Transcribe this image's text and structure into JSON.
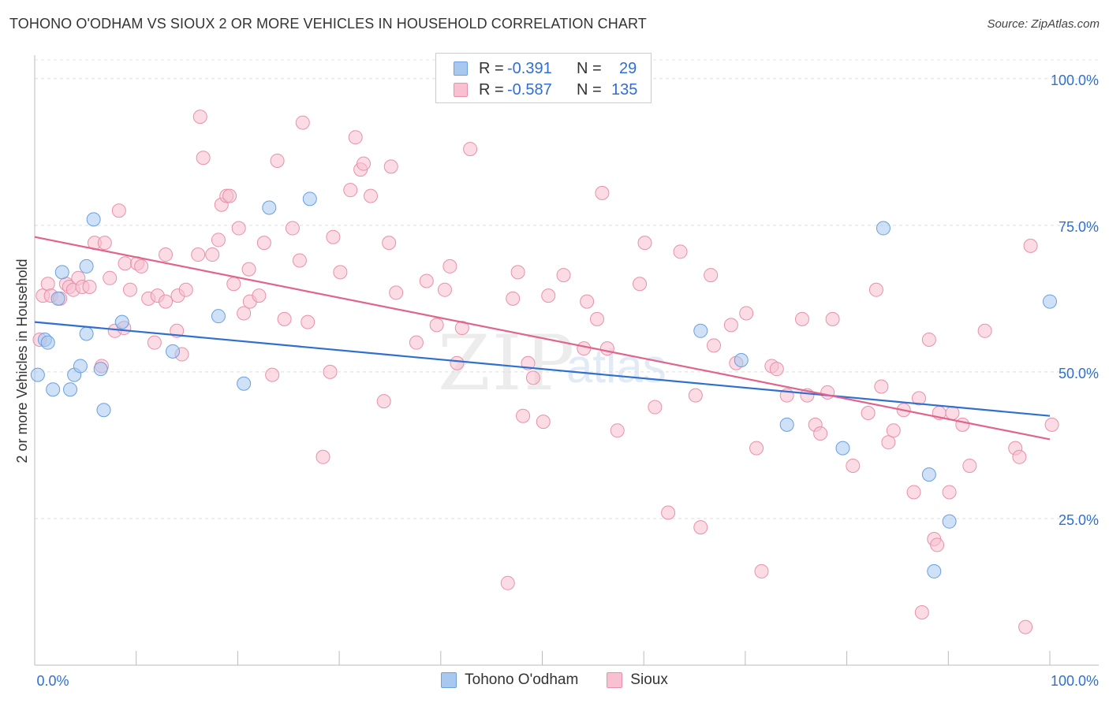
{
  "header": {
    "title": "TOHONO O'ODHAM VS SIOUX 2 OR MORE VEHICLES IN HOUSEHOLD CORRELATION CHART",
    "source": "Source: ZipAtlas.com"
  },
  "watermark": {
    "zip": "ZIP",
    "atlas": "atlas"
  },
  "legend": {
    "rows": [
      {
        "r_label": "R =",
        "r_value": "-0.391",
        "n_label": "N =",
        "n_value": "29",
        "color": "#a8c8f0",
        "stroke": "#6a9fe0"
      },
      {
        "r_label": "R =",
        "r_value": "-0.587",
        "n_label": "N =",
        "n_value": "135",
        "color": "#f8c0d0",
        "stroke": "#e890aa"
      }
    ]
  },
  "bottom_legend": {
    "items": [
      {
        "label": "Tohono O'odham",
        "color": "#a8c8f0",
        "stroke": "#6a9fe0"
      },
      {
        "label": "Sioux",
        "color": "#f8c0d0",
        "stroke": "#e890aa"
      }
    ]
  },
  "chart_data": {
    "type": "scatter",
    "title": "TOHONO O'ODHAM VS SIOUX 2 OR MORE VEHICLES IN HOUSEHOLD CORRELATION CHART",
    "xlabel": "",
    "ylabel": "2 or more Vehicles in Household",
    "xlim": [
      0,
      100
    ],
    "ylim": [
      0,
      104
    ],
    "x_tick_labels": [
      "0.0%",
      "100.0%"
    ],
    "y_ticks": [
      25,
      50,
      75,
      100
    ],
    "y_tick_labels": [
      "25.0%",
      "50.0%",
      "75.0%",
      "100.0%"
    ],
    "grid": true,
    "series": [
      {
        "name": "Tohono O'odham",
        "color": "#6a9fe0",
        "fill": "#a8c8f0",
        "trend": {
          "x": [
            0,
            100
          ],
          "y": [
            58.5,
            42.5
          ],
          "color": "#2f6fcf"
        },
        "points": [
          [
            0.3,
            49.5
          ],
          [
            1.0,
            55.5
          ],
          [
            1.3,
            55.0
          ],
          [
            1.8,
            47.0
          ],
          [
            2.3,
            62.5
          ],
          [
            2.7,
            67.0
          ],
          [
            3.5,
            47.0
          ],
          [
            3.9,
            49.5
          ],
          [
            4.5,
            51.0
          ],
          [
            5.1,
            56.5
          ],
          [
            5.1,
            68.0
          ],
          [
            5.8,
            76.0
          ],
          [
            6.5,
            50.5
          ],
          [
            6.8,
            43.5
          ],
          [
            8.6,
            58.5
          ],
          [
            13.6,
            53.5
          ],
          [
            18.1,
            59.5
          ],
          [
            20.6,
            48.0
          ],
          [
            23.1,
            78.0
          ],
          [
            27.1,
            79.5
          ],
          [
            65.6,
            57.0
          ],
          [
            69.6,
            52.0
          ],
          [
            74.1,
            41.0
          ],
          [
            79.6,
            37.0
          ],
          [
            83.6,
            74.5
          ],
          [
            88.1,
            32.5
          ],
          [
            88.6,
            16.0
          ],
          [
            90.1,
            24.5
          ],
          [
            100.0,
            62.0
          ]
        ]
      },
      {
        "name": "Sioux",
        "color": "#e890aa",
        "fill": "#f8c0d0",
        "trend": {
          "x": [
            0,
            100
          ],
          "y": [
            73.0,
            38.5
          ],
          "color": "#e0648c"
        },
        "points": [
          [
            0.5,
            55.5
          ],
          [
            0.8,
            63.0
          ],
          [
            1.3,
            65.0
          ],
          [
            1.6,
            63.0
          ],
          [
            2.5,
            62.5
          ],
          [
            3.1,
            65.0
          ],
          [
            3.4,
            64.5
          ],
          [
            3.8,
            64.0
          ],
          [
            4.3,
            66.0
          ],
          [
            4.7,
            64.5
          ],
          [
            5.4,
            64.5
          ],
          [
            5.9,
            72.0
          ],
          [
            6.6,
            51.0
          ],
          [
            6.9,
            72.0
          ],
          [
            7.4,
            66.0
          ],
          [
            7.9,
            57.0
          ],
          [
            8.3,
            77.5
          ],
          [
            8.8,
            57.5
          ],
          [
            8.9,
            68.5
          ],
          [
            9.4,
            64.0
          ],
          [
            10.1,
            68.5
          ],
          [
            10.5,
            68.0
          ],
          [
            11.2,
            62.5
          ],
          [
            11.8,
            55.0
          ],
          [
            12.1,
            63.0
          ],
          [
            12.9,
            62.0
          ],
          [
            12.9,
            70.0
          ],
          [
            14.0,
            57.0
          ],
          [
            14.1,
            63.0
          ],
          [
            14.5,
            53.0
          ],
          [
            14.9,
            64.0
          ],
          [
            16.1,
            70.0
          ],
          [
            16.3,
            93.5
          ],
          [
            16.6,
            86.5
          ],
          [
            17.5,
            70.0
          ],
          [
            18.1,
            72.5
          ],
          [
            18.4,
            78.5
          ],
          [
            18.9,
            80.0
          ],
          [
            19.2,
            80.0
          ],
          [
            19.6,
            65.0
          ],
          [
            20.1,
            74.5
          ],
          [
            20.6,
            60.0
          ],
          [
            21.1,
            67.5
          ],
          [
            21.2,
            62.0
          ],
          [
            22.1,
            63.0
          ],
          [
            22.6,
            72.0
          ],
          [
            23.4,
            49.5
          ],
          [
            23.9,
            86.0
          ],
          [
            24.6,
            59.0
          ],
          [
            25.4,
            74.5
          ],
          [
            26.1,
            69.0
          ],
          [
            26.4,
            92.5
          ],
          [
            26.9,
            58.5
          ],
          [
            28.4,
            35.5
          ],
          [
            29.1,
            50.0
          ],
          [
            29.4,
            73.0
          ],
          [
            30.1,
            67.0
          ],
          [
            31.1,
            81.0
          ],
          [
            31.6,
            90.0
          ],
          [
            32.1,
            84.5
          ],
          [
            32.4,
            85.5
          ],
          [
            33.1,
            80.0
          ],
          [
            34.4,
            45.0
          ],
          [
            34.9,
            72.0
          ],
          [
            35.1,
            85.0
          ],
          [
            35.6,
            63.5
          ],
          [
            37.6,
            55.0
          ],
          [
            38.6,
            65.5
          ],
          [
            39.6,
            58.0
          ],
          [
            40.4,
            64.0
          ],
          [
            40.9,
            68.0
          ],
          [
            41.6,
            51.5
          ],
          [
            42.1,
            57.5
          ],
          [
            42.9,
            88.0
          ],
          [
            46.6,
            14.0
          ],
          [
            47.1,
            62.5
          ],
          [
            47.6,
            67.0
          ],
          [
            48.1,
            42.5
          ],
          [
            48.6,
            51.5
          ],
          [
            49.1,
            49.0
          ],
          [
            50.1,
            41.5
          ],
          [
            50.6,
            63.0
          ],
          [
            52.1,
            66.5
          ],
          [
            54.1,
            54.0
          ],
          [
            54.4,
            62.0
          ],
          [
            55.4,
            59.0
          ],
          [
            55.9,
            80.5
          ],
          [
            56.4,
            54.0
          ],
          [
            57.4,
            40.0
          ],
          [
            59.6,
            65.0
          ],
          [
            60.1,
            72.0
          ],
          [
            61.1,
            44.0
          ],
          [
            62.4,
            26.0
          ],
          [
            63.6,
            70.5
          ],
          [
            65.1,
            46.0
          ],
          [
            65.6,
            23.5
          ],
          [
            66.6,
            66.5
          ],
          [
            66.9,
            54.5
          ],
          [
            68.6,
            58.0
          ],
          [
            69.1,
            51.5
          ],
          [
            70.1,
            60.0
          ],
          [
            71.1,
            37.0
          ],
          [
            71.6,
            16.0
          ],
          [
            72.6,
            51.0
          ],
          [
            73.1,
            50.5
          ],
          [
            74.1,
            46.0
          ],
          [
            75.6,
            59.0
          ],
          [
            76.1,
            46.0
          ],
          [
            76.9,
            41.0
          ],
          [
            77.4,
            39.5
          ],
          [
            78.1,
            46.5
          ],
          [
            78.6,
            59.0
          ],
          [
            80.6,
            34.0
          ],
          [
            82.1,
            43.0
          ],
          [
            82.9,
            64.0
          ],
          [
            83.4,
            47.5
          ],
          [
            84.1,
            38.0
          ],
          [
            84.6,
            40.0
          ],
          [
            85.6,
            43.5
          ],
          [
            86.6,
            29.5
          ],
          [
            87.1,
            45.5
          ],
          [
            87.4,
            9.0
          ],
          [
            88.1,
            55.5
          ],
          [
            88.6,
            21.5
          ],
          [
            88.9,
            20.5
          ],
          [
            89.1,
            43.0
          ],
          [
            90.1,
            29.5
          ],
          [
            90.4,
            43.0
          ],
          [
            91.4,
            41.0
          ],
          [
            92.1,
            34.0
          ],
          [
            93.6,
            57.0
          ],
          [
            96.6,
            37.0
          ],
          [
            97.0,
            35.5
          ],
          [
            97.6,
            6.5
          ],
          [
            98.1,
            71.5
          ],
          [
            100.2,
            41.0
          ]
        ]
      }
    ]
  }
}
